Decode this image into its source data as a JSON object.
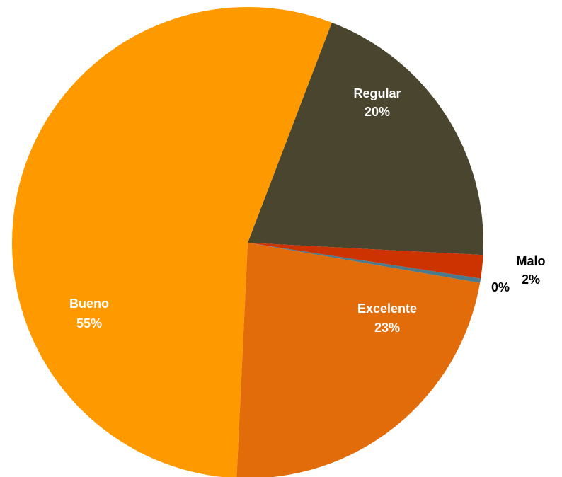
{
  "chart_data": {
    "type": "pie",
    "title": "",
    "slices": [
      {
        "name": "Regular",
        "value": 20,
        "percent_label": "20%",
        "color": "#4A452F",
        "label_color": "#FFFFFF"
      },
      {
        "name": "Malo",
        "value": 1.6,
        "percent_label": "2%",
        "color": "#CC3300",
        "label_color": "#000000"
      },
      {
        "name": "",
        "value": 0.3,
        "percent_label": "0%",
        "color": "#4A7A8C",
        "label_color": "#000000"
      },
      {
        "name": "Excelente",
        "value": 23,
        "percent_label": "23%",
        "color": "#E36C0A",
        "label_color": "#FFFFFF"
      },
      {
        "name": "Bueno",
        "value": 55,
        "percent_label": "55%",
        "color": "#FF9900",
        "label_color": "#FFFFFF"
      }
    ]
  }
}
